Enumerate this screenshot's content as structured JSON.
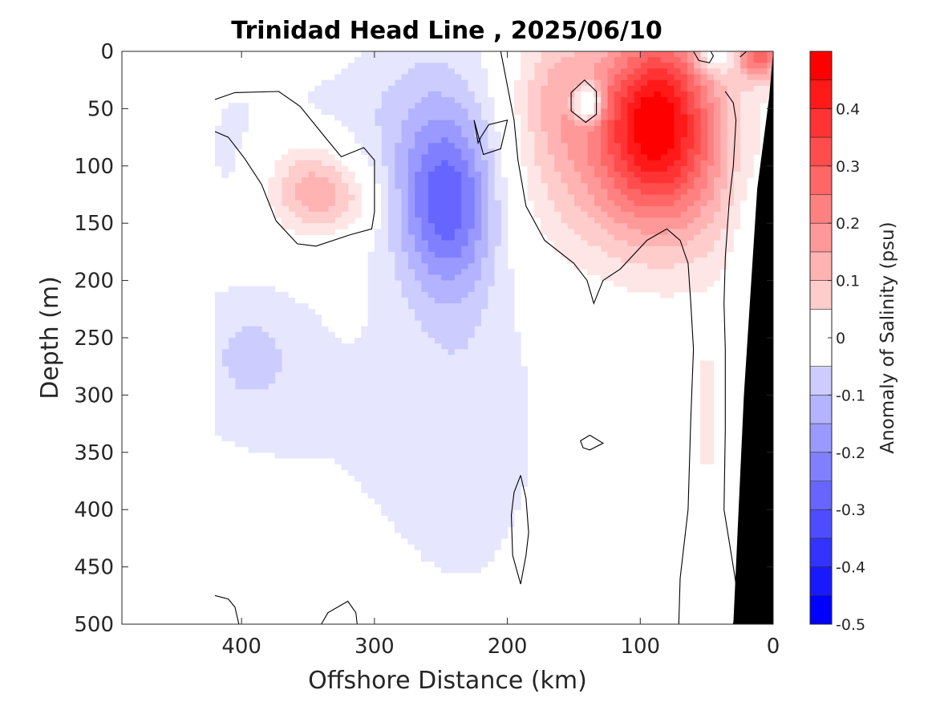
{
  "chart_data": {
    "type": "heatmap",
    "title": "Trinidad Head Line , 2025/06/10",
    "xlabel": "Offshore Distance (km)",
    "ylabel": "Depth (m)",
    "colorbar_label": "Anomaly of Salinity (psu)",
    "xlim": [
      490,
      0
    ],
    "ylim": [
      0,
      500
    ],
    "x_ticks": [
      400,
      300,
      200,
      100,
      0
    ],
    "y_ticks": [
      0,
      50,
      100,
      150,
      200,
      250,
      300,
      350,
      400,
      450,
      500
    ],
    "colorbar_range": [
      -0.5,
      0.5
    ],
    "colorbar_ticks": [
      -0.5,
      -0.4,
      -0.3,
      -0.2,
      -0.1,
      0,
      0.1,
      0.2,
      0.3,
      0.4
    ],
    "data_extent_x": [
      0,
      420
    ],
    "contour_levels": [
      -0.45,
      -0.4,
      -0.35,
      -0.3,
      -0.25,
      -0.2,
      -0.15,
      -0.1,
      -0.05,
      0.05,
      0.1,
      0.15,
      0.2,
      0.25,
      0.3,
      0.35,
      0.4,
      0.45
    ],
    "anomaly_blobs": [
      {
        "x": 245,
        "y": 135,
        "sx": 26,
        "sy": 55,
        "value": -0.28
      },
      {
        "x": 260,
        "y": 55,
        "sx": 45,
        "sy": 70,
        "value": -0.1
      },
      {
        "x": 395,
        "y": 265,
        "sx": 30,
        "sy": 40,
        "value": -0.08
      },
      {
        "x": 330,
        "y": 320,
        "sx": 110,
        "sy": 110,
        "value": -0.05
      },
      {
        "x": 230,
        "y": 330,
        "sx": 40,
        "sy": 120,
        "value": -0.06
      },
      {
        "x": 410,
        "y": 90,
        "sx": 20,
        "sy": 50,
        "value": -0.05
      },
      {
        "x": 350,
        "y": 45,
        "sx": 40,
        "sy": 25,
        "value": -0.04
      },
      {
        "x": 140,
        "y": 45,
        "sx": 8,
        "sy": 12,
        "value": -0.3
      },
      {
        "x": 45,
        "y": 5,
        "sx": 10,
        "sy": 10,
        "value": -0.12
      },
      {
        "x": 20,
        "y": 130,
        "sx": 12,
        "sy": 60,
        "value": -0.05
      },
      {
        "x": 350,
        "y": 120,
        "sx": 22,
        "sy": 30,
        "value": 0.17
      },
      {
        "x": 320,
        "y": 130,
        "sx": 20,
        "sy": 20,
        "value": 0.09
      },
      {
        "x": 88,
        "y": 50,
        "sx": 28,
        "sy": 55,
        "value": 0.37
      },
      {
        "x": 120,
        "y": 100,
        "sx": 55,
        "sy": 60,
        "value": 0.18
      },
      {
        "x": 160,
        "y": 30,
        "sx": 25,
        "sy": 40,
        "value": 0.12
      },
      {
        "x": 60,
        "y": 100,
        "sx": 40,
        "sy": 70,
        "value": 0.1
      },
      {
        "x": 10,
        "y": 5,
        "sx": 12,
        "sy": 15,
        "value": 0.3
      },
      {
        "x": 50,
        "y": 320,
        "sx": 6,
        "sy": 50,
        "value": 0.08
      }
    ],
    "zero_contours": [
      [
        [
          420,
          42
        ],
        [
          405,
          36
        ],
        [
          372,
          35
        ],
        [
          356,
          48
        ],
        [
          335,
          78
        ],
        [
          325,
          92
        ],
        [
          308,
          84
        ],
        [
          300,
          95
        ],
        [
          300,
          140
        ],
        [
          302,
          155
        ],
        [
          318,
          160
        ],
        [
          344,
          170
        ],
        [
          358,
          168
        ],
        [
          374,
          148
        ],
        [
          385,
          116
        ],
        [
          398,
          93
        ],
        [
          410,
          75
        ],
        [
          420,
          70
        ]
      ],
      [
        [
          205,
          0
        ],
        [
          200,
          30
        ],
        [
          195,
          60
        ],
        [
          192,
          95
        ],
        [
          186,
          135
        ],
        [
          172,
          165
        ],
        [
          150,
          185
        ],
        [
          140,
          200
        ],
        [
          135,
          220
        ],
        [
          128,
          200
        ],
        [
          115,
          190
        ],
        [
          95,
          165
        ],
        [
          80,
          155
        ],
        [
          70,
          165
        ],
        [
          64,
          185
        ],
        [
          62,
          220
        ],
        [
          60,
          260
        ],
        [
          62,
          320
        ],
        [
          64,
          400
        ],
        [
          70,
          460
        ],
        [
          71,
          500
        ]
      ],
      [
        [
          133,
          35
        ],
        [
          142,
          25
        ],
        [
          152,
          36
        ],
        [
          152,
          52
        ],
        [
          141,
          62
        ],
        [
          133,
          55
        ],
        [
          133,
          35
        ]
      ],
      [
        [
          225,
          60
        ],
        [
          222,
          80
        ],
        [
          220,
          75
        ],
        [
          214,
          64
        ],
        [
          200,
          60
        ],
        [
          205,
          85
        ],
        [
          218,
          90
        ],
        [
          225,
          60
        ]
      ],
      [
        [
          60,
          0
        ],
        [
          56,
          8
        ],
        [
          48,
          10
        ],
        [
          45,
          4
        ],
        [
          47,
          0
        ]
      ],
      [
        [
          25,
          5
        ],
        [
          20,
          0
        ]
      ],
      [
        [
          36,
          35
        ],
        [
          30,
          45
        ],
        [
          28,
          60
        ],
        [
          30,
          100
        ],
        [
          33,
          130
        ],
        [
          36,
          180
        ],
        [
          37,
          220
        ],
        [
          36,
          260
        ],
        [
          36,
          330
        ],
        [
          37,
          400
        ],
        [
          30,
          450
        ],
        [
          26,
          480
        ],
        [
          30,
          500
        ]
      ],
      [
        [
          138,
          335
        ],
        [
          128,
          342
        ],
        [
          138,
          348
        ],
        [
          143,
          346
        ],
        [
          145,
          340
        ],
        [
          138,
          335
        ]
      ],
      [
        [
          190,
          370
        ],
        [
          186,
          390
        ],
        [
          184,
          420
        ],
        [
          186,
          440
        ],
        [
          190,
          465
        ],
        [
          196,
          440
        ],
        [
          197,
          405
        ],
        [
          195,
          385
        ],
        [
          190,
          370
        ]
      ],
      [
        [
          420,
          475
        ],
        [
          410,
          478
        ],
        [
          405,
          485
        ],
        [
          402,
          500
        ]
      ],
      [
        [
          340,
          500
        ],
        [
          335,
          490
        ],
        [
          320,
          480
        ],
        [
          314,
          490
        ],
        [
          313,
          500
        ]
      ]
    ]
  }
}
